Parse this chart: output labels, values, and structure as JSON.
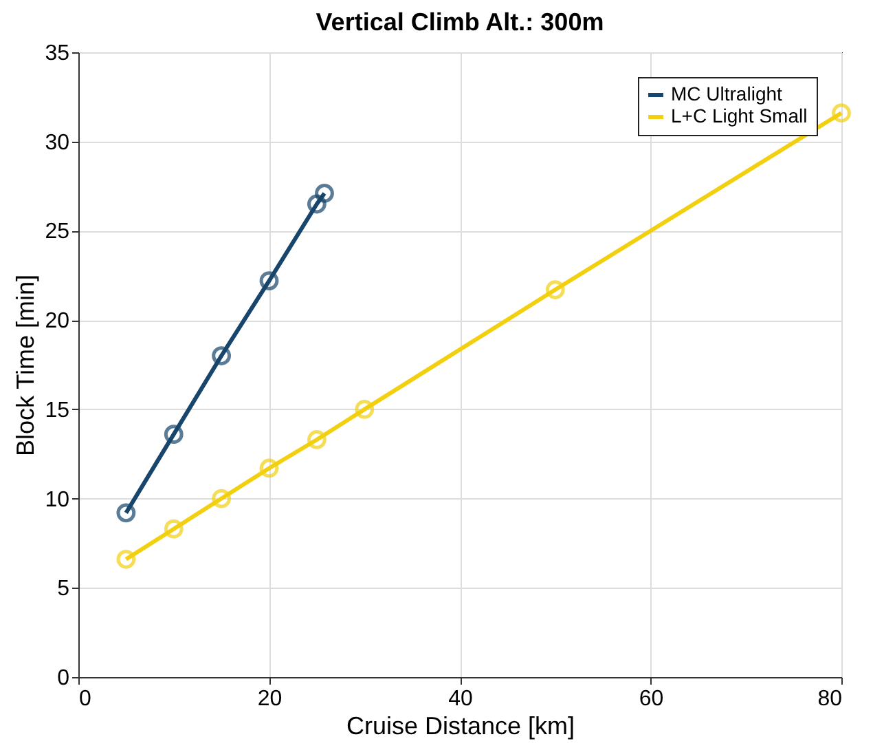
{
  "chart_data": {
    "type": "line",
    "title": "Vertical Climb Alt.: 300m",
    "xlabel": "Cruise Distance [km]",
    "ylabel": "Block Time [min]",
    "series": [
      {
        "name": "MC Ultralight",
        "color": "#17456b",
        "x": [
          5,
          10,
          15,
          20,
          25,
          25.8
        ],
        "values": [
          9.2,
          13.6,
          18.0,
          22.2,
          26.5,
          27.1
        ]
      },
      {
        "name": "L+C Light Small",
        "color": "#f2d00f",
        "x": [
          5,
          10,
          15,
          20,
          25,
          30,
          50,
          80
        ],
        "values": [
          6.6,
          8.3,
          10.0,
          11.7,
          13.3,
          15.0,
          21.7,
          31.6
        ]
      }
    ],
    "xlim": [
      0,
      80
    ],
    "xticks": [
      0,
      20,
      40,
      60,
      80
    ],
    "ylim": [
      0,
      35
    ],
    "yticks": [
      0,
      5,
      10,
      15,
      20,
      25,
      30,
      35
    ],
    "grid": true,
    "legend": "top right",
    "marker": "circle",
    "line_style": "solid"
  }
}
